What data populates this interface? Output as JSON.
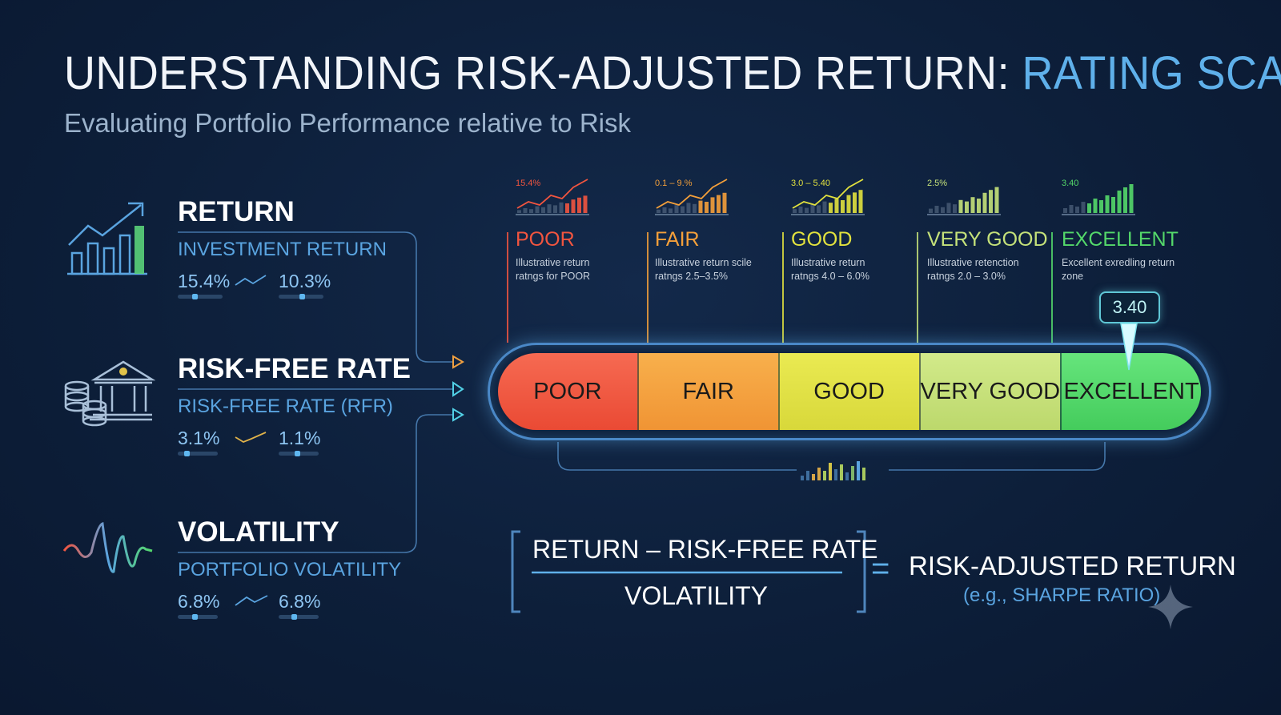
{
  "header": {
    "title_main": "UNDERSTANDING RISK-ADJUSTED RETURN: ",
    "title_accent": "RATING SCALE",
    "subtitle": "Evaluating Portfolio Performance relative to Risk"
  },
  "inputs": [
    {
      "title": "RETURN",
      "subtitle": "INVESTMENT RETURN",
      "value_a": "15.4%",
      "value_b": "10.3%",
      "icon": "growth-chart-icon"
    },
    {
      "title": "RISK-FREE RATE",
      "subtitle": "RISK-FREE RATE (RFR)",
      "value_a": "3.1%",
      "value_b": "1.1%",
      "icon": "bank-coins-icon"
    },
    {
      "title": "VOLATILITY",
      "subtitle": "PORTFOLIO VOLATILITY",
      "value_a": "6.8%",
      "value_b": "6.8%",
      "icon": "wave-icon"
    }
  ],
  "ratings": [
    {
      "name": "POOR",
      "num": "15.4%",
      "desc_1": "Illustrative return",
      "desc_2": "ratngs for POOR",
      "color": "#f2553f",
      "segment": "POOR"
    },
    {
      "name": "FAIR",
      "num": "0.1 – 9.%",
      "desc_1": "Illustrative return scile",
      "desc_2": "ratngs 2.5–3.5%",
      "color": "#f5a03a",
      "segment": "FAIR"
    },
    {
      "name": "GOOD",
      "num": "3.0 – 5.40",
      "desc_1": "Illustrative return",
      "desc_2": "ratngs 4.0 – 6.0%",
      "color": "#e2e23e",
      "segment": "GOOD"
    },
    {
      "name": "VERY GOOD",
      "num": "2.5%",
      "desc_1": "Illustrative retenction",
      "desc_2": "ratngs 2.0 – 3.0%",
      "color": "#c5e27a",
      "segment": "VERY GOOD"
    },
    {
      "name": "EXCELLENT",
      "num": "3.40",
      "desc_1": "Excellent exredling return",
      "desc_2": "zone",
      "color": "#54d86a",
      "segment": "EXCELLENT"
    }
  ],
  "marker": {
    "value": "3.40"
  },
  "formula": {
    "numerator": "RETURN – RISK-FREE RATE",
    "denominator": "VOLATILITY",
    "equals": "=",
    "result": "RISK-ADJUSTED RETURN",
    "result_example": "(e.g., SHARPE RATIO)"
  },
  "colors": {
    "background": "#0d1f3a",
    "accent": "#5fb0ea",
    "poor": "#f2553f",
    "fair": "#f5a03a",
    "good": "#e2e23e",
    "very_good": "#c5e27a",
    "excellent": "#54d86a"
  }
}
